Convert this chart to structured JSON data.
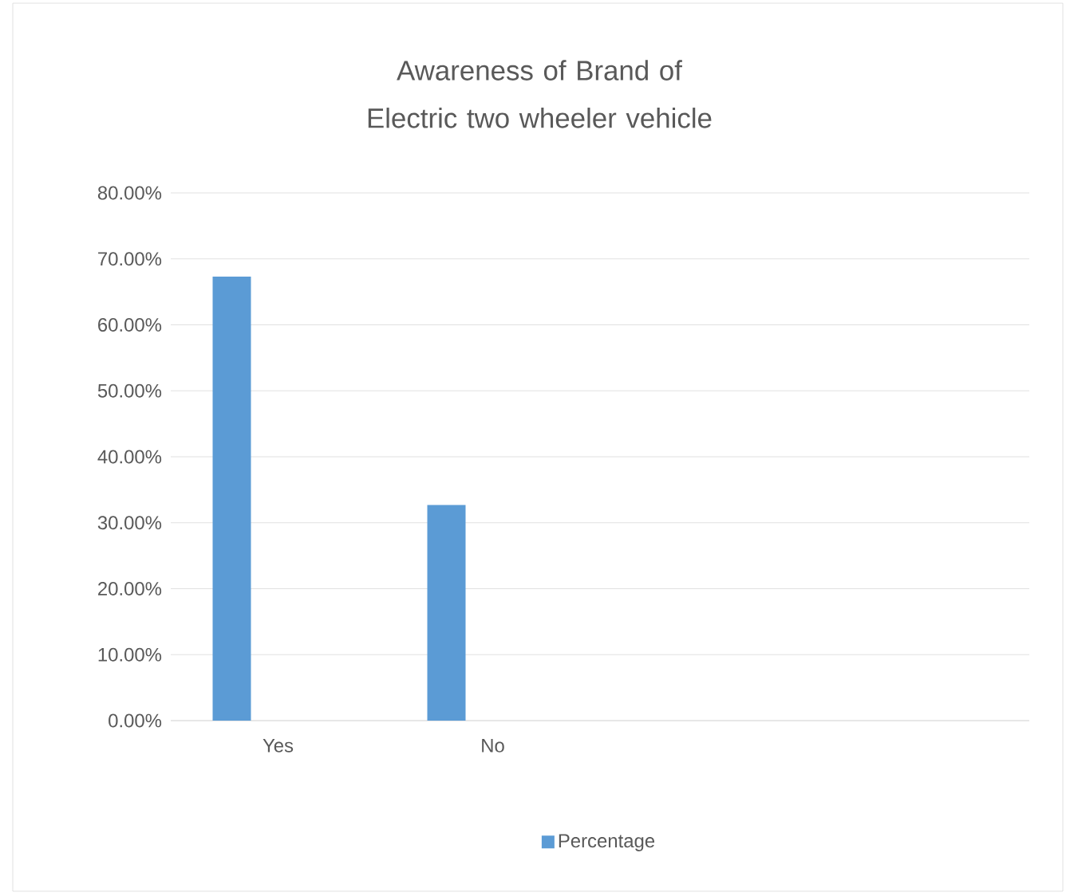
{
  "chart_data": {
    "type": "bar",
    "title": "Awareness of Brand of Electric two wheeler vehicle",
    "categories": [
      "Yes",
      "No",
      null,
      null
    ],
    "series": [
      {
        "name": "Percentage",
        "color": "#5b9bd5",
        "values": [
          67.3,
          32.7,
          null,
          null
        ]
      }
    ],
    "ylim": [
      0,
      80
    ],
    "yticks": [
      {
        "value": 0,
        "label": "0.00%"
      },
      {
        "value": 10,
        "label": "10.00%"
      },
      {
        "value": 20,
        "label": "20.00%"
      },
      {
        "value": 30,
        "label": "30.00%"
      },
      {
        "value": 40,
        "label": "40.00%"
      },
      {
        "value": 50,
        "label": "50.00%"
      },
      {
        "value": 60,
        "label": "60.00%"
      },
      {
        "value": 70,
        "label": "70.00%"
      },
      {
        "value": 80,
        "label": "80.00%"
      }
    ],
    "grid": "y",
    "legend": "bottom"
  }
}
